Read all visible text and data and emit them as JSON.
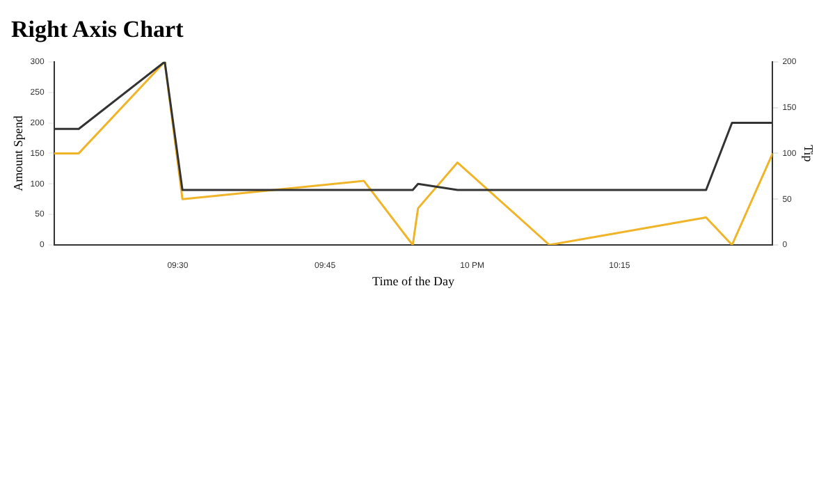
{
  "chart_data": {
    "type": "line",
    "title": "Right Axis Chart",
    "xlabel": "Time of the Day",
    "ylabel": "Amount Spend",
    "y2label": "Tip",
    "xlim": [
      9.29,
      10.51
    ],
    "xticks": [
      {
        "value": 9.5,
        "label": "09:30"
      },
      {
        "value": 9.75,
        "label": "09:45"
      },
      {
        "value": 10,
        "label": "10 PM"
      },
      {
        "value": 10.25,
        "label": "10:15"
      }
    ],
    "ylim": [
      0,
      300
    ],
    "yticks": [
      0,
      50,
      100,
      150,
      200,
      250,
      300
    ],
    "y2lim": [
      0,
      200
    ],
    "y2ticks": [
      0,
      50,
      100,
      150,
      200
    ],
    "grid": false,
    "legend": false,
    "marker": "none",
    "line_style": "solid",
    "series": [
      {
        "color": "#333333",
        "x": [
          9.29,
          9.332,
          9.478,
          9.508,
          9.899,
          9.908,
          9.975,
          10.397,
          10.441,
          10.51
        ],
        "values": [
          190,
          190,
          300,
          90,
          90,
          100,
          90,
          90,
          200,
          200
        ]
      },
      {
        "color": "#f0b429",
        "axis": "y2",
        "x": [
          9.29,
          9.332,
          9.478,
          9.508,
          9.816,
          9.899,
          9.908,
          9.975,
          10.131,
          10.397,
          10.441,
          10.51
        ],
        "values": [
          100,
          100,
          200,
          50,
          70,
          0,
          40,
          90,
          0,
          30,
          0,
          100
        ]
      }
    ]
  }
}
